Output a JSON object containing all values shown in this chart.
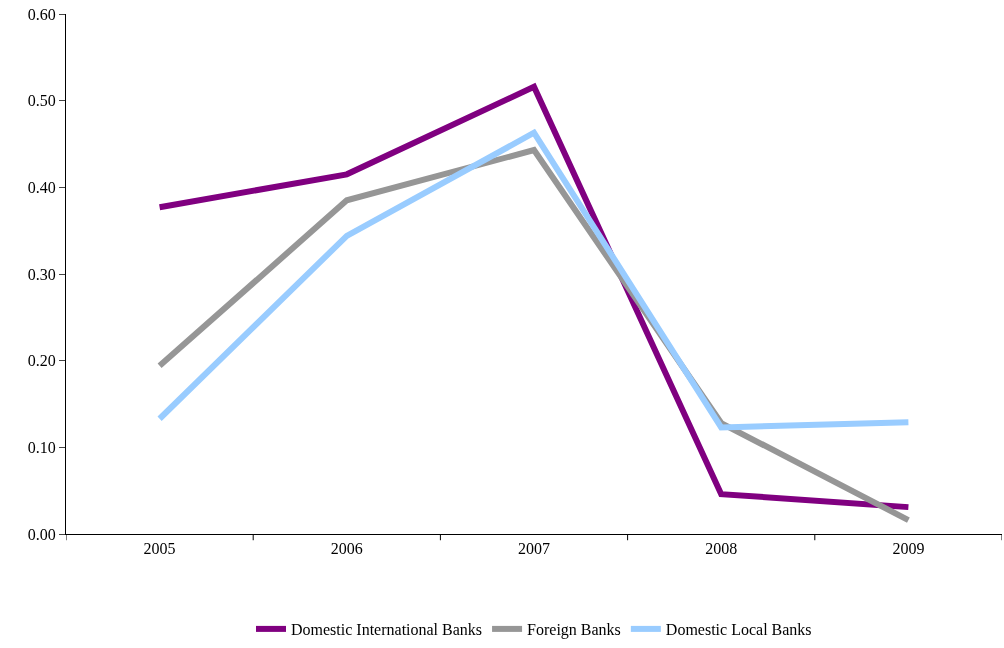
{
  "chart_data": {
    "type": "line",
    "categories": [
      "2005",
      "2006",
      "2007",
      "2008",
      "2009"
    ],
    "series": [
      {
        "name": "Domestic International Banks",
        "color": "#800080",
        "values": [
          0.377,
          0.415,
          0.516,
          0.046,
          0.031
        ]
      },
      {
        "name": "Foreign Banks",
        "color": "#969696",
        "values": [
          0.194,
          0.385,
          0.443,
          0.128,
          0.016
        ]
      },
      {
        "name": "Domestic Local Banks",
        "color": "#99ccff",
        "values": [
          0.133,
          0.344,
          0.463,
          0.123,
          0.129
        ]
      }
    ],
    "ylim": [
      0,
      0.6
    ],
    "yticks": [
      {
        "value": 0,
        "label": "0.00"
      },
      {
        "value": 0.1,
        "label": "0.10"
      },
      {
        "value": 0.2,
        "label": "0.20"
      },
      {
        "value": 0.3,
        "label": "0.30"
      },
      {
        "value": 0.4,
        "label": "0.40"
      },
      {
        "value": 0.5,
        "label": "0.50"
      },
      {
        "value": 0.6,
        "label": "0.60"
      }
    ],
    "legend": "bottom",
    "marker": "none",
    "line_style": "solid"
  }
}
